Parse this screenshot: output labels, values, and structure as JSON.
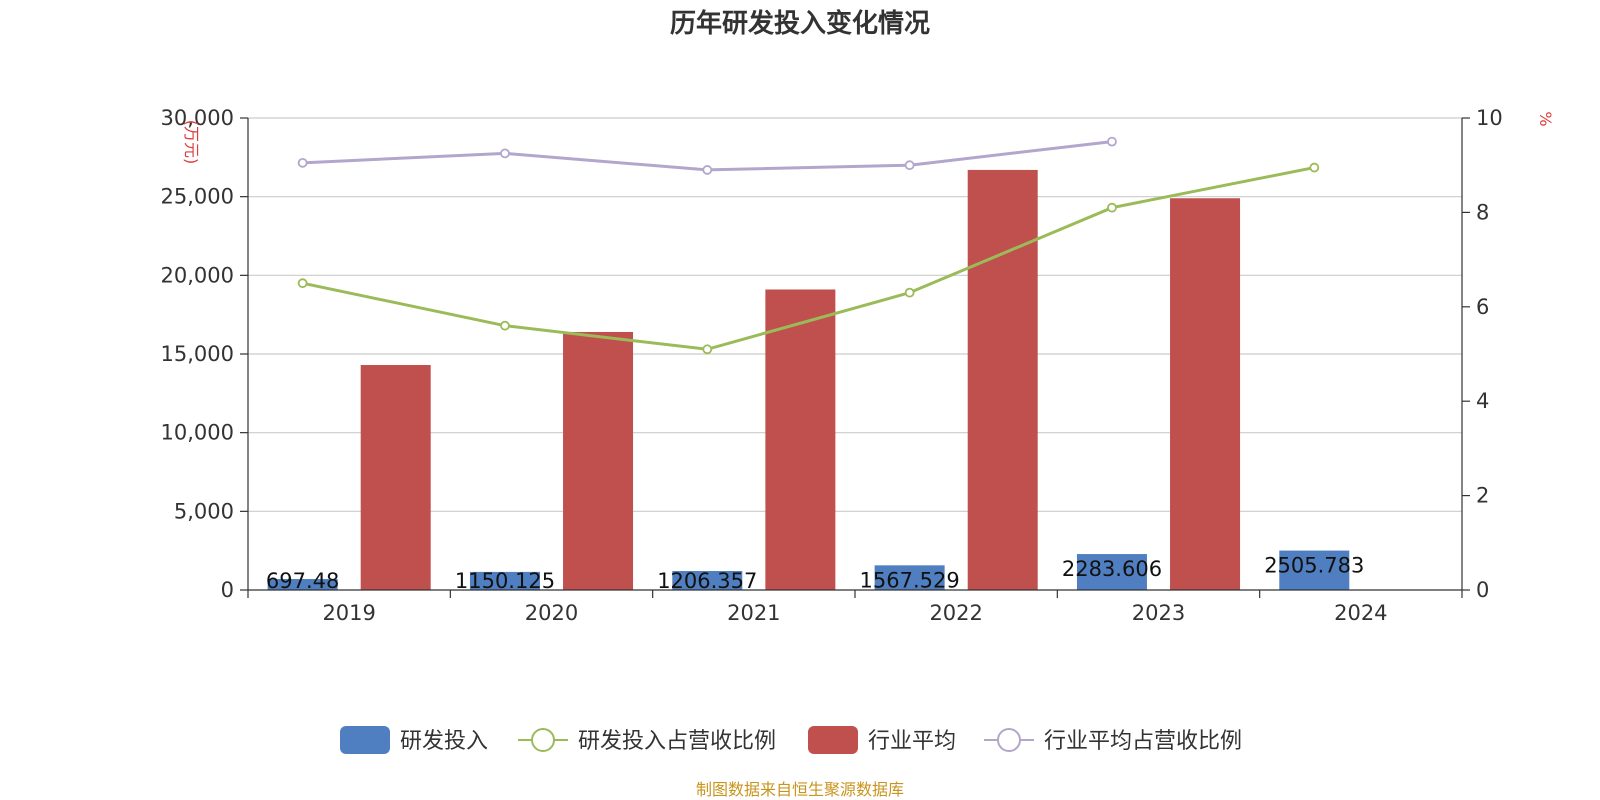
{
  "chart_data": {
    "type": "bar",
    "title": "历年研发投入变化情况",
    "categories": [
      "2019",
      "2020",
      "2021",
      "2022",
      "2023",
      "2024"
    ],
    "y_left": {
      "unit_label": "(万元)",
      "min": 0,
      "max": 30000,
      "ticks": [
        "0",
        "5,000",
        "10,000",
        "15,000",
        "20,000",
        "25,000",
        "30,000"
      ]
    },
    "y_right": {
      "unit_label": "%",
      "min": 0,
      "max": 10,
      "ticks": [
        "0",
        "2",
        "4",
        "6",
        "8",
        "10"
      ]
    },
    "series": [
      {
        "name": "研发投入",
        "kind": "bar",
        "axis": "left",
        "color": "#4f7fc0",
        "values": [
          697.48,
          1150.125,
          1206.357,
          1567.529,
          2283.606,
          2505.783
        ],
        "labels": [
          "697.48",
          "1150.125",
          "1206.357",
          "1567.529",
          "2283.606",
          "2505.783"
        ]
      },
      {
        "name": "研发投入占营收比例",
        "kind": "line",
        "axis": "right",
        "color": "#9bbb59",
        "values": [
          6.5,
          5.6,
          5.1,
          6.3,
          8.1,
          8.95
        ]
      },
      {
        "name": "行业平均",
        "kind": "bar",
        "axis": "left",
        "color": "#c0504d",
        "values": [
          14300,
          16400,
          19100,
          26700,
          24900,
          null
        ]
      },
      {
        "name": "行业平均占营收比例",
        "kind": "line",
        "axis": "right",
        "color": "#b3a6cc",
        "values": [
          9.05,
          9.25,
          8.9,
          9.0,
          9.5,
          null
        ]
      }
    ],
    "grid": true,
    "legend_position": "bottom",
    "source": "制图数据来自恒生聚源数据库"
  }
}
